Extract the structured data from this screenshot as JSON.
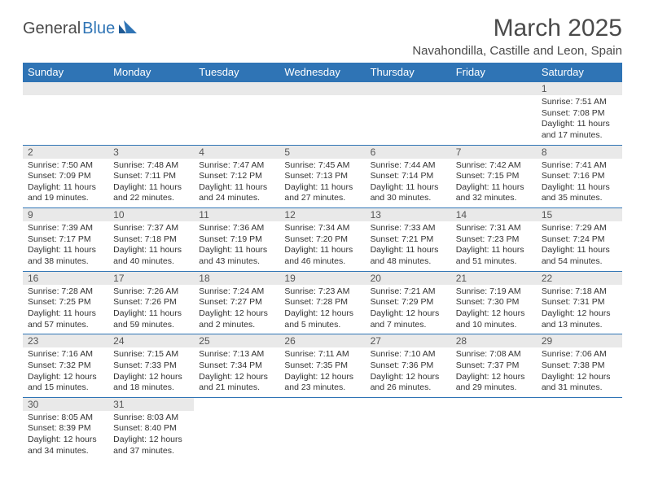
{
  "logo": {
    "part1": "General",
    "part2": "Blue"
  },
  "title": "March 2025",
  "location": "Navahondilla, Castille and Leon, Spain",
  "colors": {
    "header_bg": "#2f74b5",
    "header_text": "#ffffff",
    "daynum_bg": "#e9e9e9",
    "border": "#2f74b5",
    "text": "#333333",
    "title_text": "#4a4a4a"
  },
  "typography": {
    "title_fontsize": 30,
    "location_fontsize": 15,
    "header_fontsize": 13,
    "daynum_fontsize": 12,
    "cell_fontsize": 10.5
  },
  "day_headers": [
    "Sunday",
    "Monday",
    "Tuesday",
    "Wednesday",
    "Thursday",
    "Friday",
    "Saturday"
  ],
  "weeks": [
    [
      null,
      null,
      null,
      null,
      null,
      null,
      {
        "n": "1",
        "sr": "Sunrise: 7:51 AM",
        "ss": "Sunset: 7:08 PM",
        "dl": "Daylight: 11 hours and 17 minutes."
      }
    ],
    [
      {
        "n": "2",
        "sr": "Sunrise: 7:50 AM",
        "ss": "Sunset: 7:09 PM",
        "dl": "Daylight: 11 hours and 19 minutes."
      },
      {
        "n": "3",
        "sr": "Sunrise: 7:48 AM",
        "ss": "Sunset: 7:11 PM",
        "dl": "Daylight: 11 hours and 22 minutes."
      },
      {
        "n": "4",
        "sr": "Sunrise: 7:47 AM",
        "ss": "Sunset: 7:12 PM",
        "dl": "Daylight: 11 hours and 24 minutes."
      },
      {
        "n": "5",
        "sr": "Sunrise: 7:45 AM",
        "ss": "Sunset: 7:13 PM",
        "dl": "Daylight: 11 hours and 27 minutes."
      },
      {
        "n": "6",
        "sr": "Sunrise: 7:44 AM",
        "ss": "Sunset: 7:14 PM",
        "dl": "Daylight: 11 hours and 30 minutes."
      },
      {
        "n": "7",
        "sr": "Sunrise: 7:42 AM",
        "ss": "Sunset: 7:15 PM",
        "dl": "Daylight: 11 hours and 32 minutes."
      },
      {
        "n": "8",
        "sr": "Sunrise: 7:41 AM",
        "ss": "Sunset: 7:16 PM",
        "dl": "Daylight: 11 hours and 35 minutes."
      }
    ],
    [
      {
        "n": "9",
        "sr": "Sunrise: 7:39 AM",
        "ss": "Sunset: 7:17 PM",
        "dl": "Daylight: 11 hours and 38 minutes."
      },
      {
        "n": "10",
        "sr": "Sunrise: 7:37 AM",
        "ss": "Sunset: 7:18 PM",
        "dl": "Daylight: 11 hours and 40 minutes."
      },
      {
        "n": "11",
        "sr": "Sunrise: 7:36 AM",
        "ss": "Sunset: 7:19 PM",
        "dl": "Daylight: 11 hours and 43 minutes."
      },
      {
        "n": "12",
        "sr": "Sunrise: 7:34 AM",
        "ss": "Sunset: 7:20 PM",
        "dl": "Daylight: 11 hours and 46 minutes."
      },
      {
        "n": "13",
        "sr": "Sunrise: 7:33 AM",
        "ss": "Sunset: 7:21 PM",
        "dl": "Daylight: 11 hours and 48 minutes."
      },
      {
        "n": "14",
        "sr": "Sunrise: 7:31 AM",
        "ss": "Sunset: 7:23 PM",
        "dl": "Daylight: 11 hours and 51 minutes."
      },
      {
        "n": "15",
        "sr": "Sunrise: 7:29 AM",
        "ss": "Sunset: 7:24 PM",
        "dl": "Daylight: 11 hours and 54 minutes."
      }
    ],
    [
      {
        "n": "16",
        "sr": "Sunrise: 7:28 AM",
        "ss": "Sunset: 7:25 PM",
        "dl": "Daylight: 11 hours and 57 minutes."
      },
      {
        "n": "17",
        "sr": "Sunrise: 7:26 AM",
        "ss": "Sunset: 7:26 PM",
        "dl": "Daylight: 11 hours and 59 minutes."
      },
      {
        "n": "18",
        "sr": "Sunrise: 7:24 AM",
        "ss": "Sunset: 7:27 PM",
        "dl": "Daylight: 12 hours and 2 minutes."
      },
      {
        "n": "19",
        "sr": "Sunrise: 7:23 AM",
        "ss": "Sunset: 7:28 PM",
        "dl": "Daylight: 12 hours and 5 minutes."
      },
      {
        "n": "20",
        "sr": "Sunrise: 7:21 AM",
        "ss": "Sunset: 7:29 PM",
        "dl": "Daylight: 12 hours and 7 minutes."
      },
      {
        "n": "21",
        "sr": "Sunrise: 7:19 AM",
        "ss": "Sunset: 7:30 PM",
        "dl": "Daylight: 12 hours and 10 minutes."
      },
      {
        "n": "22",
        "sr": "Sunrise: 7:18 AM",
        "ss": "Sunset: 7:31 PM",
        "dl": "Daylight: 12 hours and 13 minutes."
      }
    ],
    [
      {
        "n": "23",
        "sr": "Sunrise: 7:16 AM",
        "ss": "Sunset: 7:32 PM",
        "dl": "Daylight: 12 hours and 15 minutes."
      },
      {
        "n": "24",
        "sr": "Sunrise: 7:15 AM",
        "ss": "Sunset: 7:33 PM",
        "dl": "Daylight: 12 hours and 18 minutes."
      },
      {
        "n": "25",
        "sr": "Sunrise: 7:13 AM",
        "ss": "Sunset: 7:34 PM",
        "dl": "Daylight: 12 hours and 21 minutes."
      },
      {
        "n": "26",
        "sr": "Sunrise: 7:11 AM",
        "ss": "Sunset: 7:35 PM",
        "dl": "Daylight: 12 hours and 23 minutes."
      },
      {
        "n": "27",
        "sr": "Sunrise: 7:10 AM",
        "ss": "Sunset: 7:36 PM",
        "dl": "Daylight: 12 hours and 26 minutes."
      },
      {
        "n": "28",
        "sr": "Sunrise: 7:08 AM",
        "ss": "Sunset: 7:37 PM",
        "dl": "Daylight: 12 hours and 29 minutes."
      },
      {
        "n": "29",
        "sr": "Sunrise: 7:06 AM",
        "ss": "Sunset: 7:38 PM",
        "dl": "Daylight: 12 hours and 31 minutes."
      }
    ],
    [
      {
        "n": "30",
        "sr": "Sunrise: 8:05 AM",
        "ss": "Sunset: 8:39 PM",
        "dl": "Daylight: 12 hours and 34 minutes."
      },
      {
        "n": "31",
        "sr": "Sunrise: 8:03 AM",
        "ss": "Sunset: 8:40 PM",
        "dl": "Daylight: 12 hours and 37 minutes."
      },
      null,
      null,
      null,
      null,
      null
    ]
  ]
}
